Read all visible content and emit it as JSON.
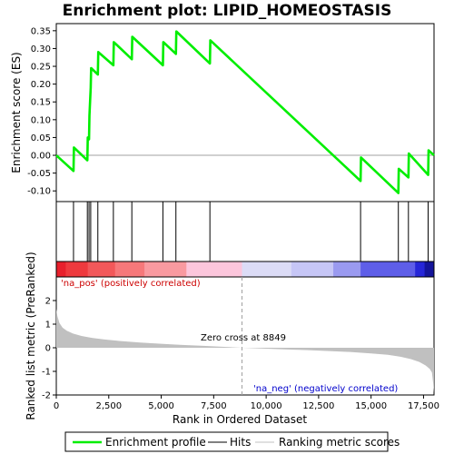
{
  "chart_data": {
    "type": "line",
    "title": "Enrichment plot: LIPID_HOMEOSTASIS",
    "top_panel": {
      "ylabel": "Enrichment score (ES)",
      "ylim": [
        -0.13,
        0.37
      ],
      "yticks": [
        -0.1,
        -0.05,
        0.0,
        0.05,
        0.1,
        0.15,
        0.2,
        0.25,
        0.3,
        0.35
      ],
      "ytick_labels": [
        "-0.10",
        "-0.05",
        "0.00",
        "0.05",
        "0.10",
        "0.15",
        "0.20",
        "0.25",
        "0.30",
        "0.35"
      ],
      "series": [
        {
          "name": "Enrichment profile",
          "color": "#00ee00",
          "x": [
            0,
            820,
            840,
            1480,
            1500,
            1560,
            1580,
            1640,
            1660,
            1980,
            2000,
            2720,
            2740,
            3600,
            3620,
            5080,
            5100,
            5700,
            5720,
            7320,
            7340,
            14500,
            14520,
            16300,
            16320,
            16780,
            16800,
            17720,
            17740,
            18000
          ],
          "y": [
            0.0,
            -0.044,
            0.022,
            -0.014,
            0.05,
            0.045,
            0.112,
            0.19,
            0.245,
            0.227,
            0.29,
            0.253,
            0.318,
            0.27,
            0.333,
            0.253,
            0.318,
            0.285,
            0.348,
            0.258,
            0.323,
            -0.072,
            -0.006,
            -0.106,
            -0.038,
            -0.062,
            0.005,
            -0.055,
            0.014,
            0.0
          ]
        }
      ],
      "hits": [
        820,
        1480,
        1560,
        1640,
        1980,
        2720,
        3600,
        5080,
        5700,
        7320,
        14500,
        16300,
        16780,
        17720
      ]
    },
    "bottom_panel": {
      "ylabel": "Ranked list metric (PreRanked)",
      "xlabel": "Rank in Ordered Dataset",
      "ylim": [
        -2,
        3
      ],
      "yticks": [
        -2,
        -1,
        0,
        1,
        2
      ],
      "ytick_labels": [
        "-2",
        "-1",
        "0",
        "1",
        "2"
      ],
      "metric_points": {
        "x": [
          0,
          50,
          150,
          300,
          500,
          800,
          1200,
          1700,
          2300,
          3000,
          4000,
          5000,
          6000,
          7000,
          8000,
          8849,
          10000,
          11000,
          12000,
          13000,
          14000,
          15000,
          15800,
          16400,
          16900,
          17300,
          17600,
          17800,
          17900,
          17960,
          18000
        ],
        "y": [
          1.65,
          1.35,
          1.05,
          0.85,
          0.72,
          0.6,
          0.5,
          0.42,
          0.35,
          0.29,
          0.22,
          0.17,
          0.12,
          0.08,
          0.04,
          0.0,
          -0.04,
          -0.07,
          -0.1,
          -0.14,
          -0.18,
          -0.24,
          -0.3,
          -0.38,
          -0.48,
          -0.6,
          -0.75,
          -0.9,
          -1.05,
          -1.5,
          -1.9
        ]
      }
    },
    "x_axis": {
      "xlim": [
        0,
        18000
      ],
      "xticks": [
        0,
        2500,
        5000,
        7500,
        10000,
        12500,
        15000,
        17500
      ],
      "xtick_labels": [
        "0",
        "2,500",
        "5,000",
        "7,500",
        "10,000",
        "12,500",
        "15,000",
        "17,500"
      ]
    },
    "annotations": {
      "pos_label": "'na_pos' (positively correlated)",
      "neg_label": "'na_neg' (negatively correlated)",
      "zero_cross_label": "Zero cross at 8849",
      "zero_cross": 8849
    },
    "colorbar": {
      "segments": [
        {
          "from": 0,
          "to": 450,
          "color": "#e8202c"
        },
        {
          "from": 450,
          "to": 1500,
          "color": "#ee3a3e"
        },
        {
          "from": 1500,
          "to": 2800,
          "color": "#f2585a"
        },
        {
          "from": 2800,
          "to": 4200,
          "color": "#f6787a"
        },
        {
          "from": 4200,
          "to": 6200,
          "color": "#f99aa0"
        },
        {
          "from": 6200,
          "to": 8849,
          "color": "#fcc6dc"
        },
        {
          "from": 8849,
          "to": 11200,
          "color": "#dcdcf6"
        },
        {
          "from": 11200,
          "to": 13200,
          "color": "#c6c6f6"
        },
        {
          "from": 13200,
          "to": 14500,
          "color": "#9a9af0"
        },
        {
          "from": 14500,
          "to": 17100,
          "color": "#5e5ee8"
        },
        {
          "from": 17100,
          "to": 17550,
          "color": "#2626d8"
        },
        {
          "from": 17550,
          "to": 18000,
          "color": "#14149a"
        }
      ]
    },
    "legend": {
      "items": [
        {
          "label": "Enrichment profile",
          "kind": "line",
          "color": "#00ee00"
        },
        {
          "label": "Hits",
          "kind": "line",
          "color": "#000000"
        },
        {
          "label": "Ranking metric scores",
          "kind": "line",
          "color": "#c0c0c0"
        }
      ]
    },
    "colors": {
      "pos_text": "#cc0000",
      "neg_text": "#0000cc",
      "metric_fill": "#c0c0c0",
      "zero_line": "#a0a0a0"
    }
  }
}
